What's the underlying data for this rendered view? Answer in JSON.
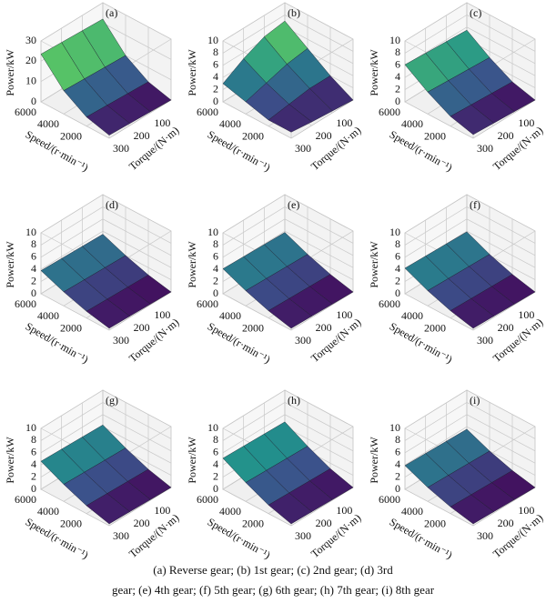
{
  "chart_data": [
    {
      "type": "surface",
      "title": "(a)",
      "x_label": "Speed/(r·min⁻¹)",
      "y_label": "Torque/(N·m)",
      "z_label": "Power/kW",
      "x": [
        0,
        2000,
        4000,
        6000
      ],
      "y": [
        0,
        100,
        200,
        300
      ],
      "z": [
        [
          0,
          0.5,
          1,
          1.5
        ],
        [
          3,
          3.5,
          4,
          4.5
        ],
        [
          10,
          10.5,
          11,
          11.5
        ],
        [
          22,
          22.5,
          23,
          23.5
        ]
      ],
      "xlim": [
        0,
        6000
      ],
      "xticks": [
        2000,
        4000,
        6000
      ],
      "ylim": [
        0,
        300
      ],
      "yticks": [
        100,
        200,
        300
      ],
      "zlim": [
        0,
        30
      ],
      "zticks": [
        0,
        10,
        20,
        30
      ]
    },
    {
      "type": "surface",
      "title": "(b)",
      "x_label": "Speed/(r·min⁻¹)",
      "y_label": "Torque/(N·m)",
      "z_label": "Power/kW",
      "x": [
        0,
        2000,
        4000,
        6000
      ],
      "y": [
        0,
        100,
        200,
        300
      ],
      "z": [
        [
          0,
          0.3,
          0.6,
          1
        ],
        [
          2,
          2,
          1.5,
          1
        ],
        [
          4.5,
          4,
          3,
          2
        ],
        [
          7,
          6.5,
          5,
          3
        ]
      ],
      "xlim": [
        0,
        6000
      ],
      "xticks": [
        2000,
        4000,
        6000
      ],
      "ylim": [
        0,
        300
      ],
      "yticks": [
        100,
        200,
        300
      ],
      "zlim": [
        0,
        10
      ],
      "zticks": [
        0,
        2,
        4,
        6,
        8,
        10
      ]
    },
    {
      "type": "surface",
      "title": "(c)",
      "x_label": "Speed/(r·min⁻¹)",
      "y_label": "Torque/(N·m)",
      "z_label": "Power/kW",
      "x": [
        0,
        2000,
        4000,
        6000
      ],
      "y": [
        0,
        100,
        200,
        300
      ],
      "z": [
        [
          0,
          0.2,
          0.4,
          0.6
        ],
        [
          1,
          1.2,
          1.4,
          1.6
        ],
        [
          3,
          3.2,
          3.4,
          3.6
        ],
        [
          5.5,
          5.7,
          5.9,
          6.1
        ]
      ],
      "xlim": [
        0,
        6000
      ],
      "xticks": [
        2000,
        4000,
        6000
      ],
      "ylim": [
        0,
        300
      ],
      "yticks": [
        100,
        200,
        300
      ],
      "zlim": [
        0,
        10
      ],
      "zticks": [
        0,
        2,
        4,
        6,
        8,
        10
      ]
    },
    {
      "type": "surface",
      "title": "(d)",
      "x_label": "Speed/(r·min⁻¹)",
      "y_label": "Torque/(N·m)",
      "z_label": "Power/kW",
      "x": [
        0,
        2000,
        4000,
        6000
      ],
      "y": [
        0,
        100,
        200,
        300
      ],
      "z": [
        [
          0,
          0.1,
          0.2,
          0.3
        ],
        [
          0.8,
          0.9,
          1,
          1.1
        ],
        [
          2,
          2.1,
          2.2,
          2.3
        ],
        [
          3.5,
          3.6,
          3.7,
          3.8
        ]
      ],
      "xlim": [
        0,
        6000
      ],
      "xticks": [
        2000,
        4000,
        6000
      ],
      "ylim": [
        0,
        300
      ],
      "yticks": [
        100,
        200,
        300
      ],
      "zlim": [
        0,
        10
      ],
      "zticks": [
        0,
        2,
        4,
        6,
        8,
        10
      ]
    },
    {
      "type": "surface",
      "title": "(e)",
      "x_label": "Speed/(r·min⁻¹)",
      "y_label": "Torque/(N·m)",
      "z_label": "Power/kW",
      "x": [
        0,
        2000,
        4000,
        6000
      ],
      "y": [
        0,
        100,
        200,
        300
      ],
      "z": [
        [
          0,
          0.1,
          0.2,
          0.3
        ],
        [
          0.9,
          1,
          1.1,
          1.2
        ],
        [
          2.2,
          2.3,
          2.4,
          2.5
        ],
        [
          3.8,
          3.9,
          4,
          4.1
        ]
      ],
      "xlim": [
        0,
        6000
      ],
      "xticks": [
        2000,
        4000,
        6000
      ],
      "ylim": [
        0,
        300
      ],
      "yticks": [
        100,
        200,
        300
      ],
      "zlim": [
        0,
        10
      ],
      "zticks": [
        0,
        2,
        4,
        6,
        8,
        10
      ]
    },
    {
      "type": "surface",
      "title": "(f)",
      "x_label": "Speed/(r·min⁻¹)",
      "y_label": "Torque/(N·m)",
      "z_label": "Power/kW",
      "x": [
        0,
        2000,
        4000,
        6000
      ],
      "y": [
        0,
        100,
        200,
        300
      ],
      "z": [
        [
          0,
          0.1,
          0.2,
          0.3
        ],
        [
          0.9,
          1,
          1.1,
          1.2
        ],
        [
          2.2,
          2.3,
          2.4,
          2.5
        ],
        [
          3.9,
          4,
          4.1,
          4.2
        ]
      ],
      "xlim": [
        0,
        6000
      ],
      "xticks": [
        2000,
        4000,
        6000
      ],
      "ylim": [
        0,
        300
      ],
      "yticks": [
        100,
        200,
        300
      ],
      "zlim": [
        0,
        10
      ],
      "zticks": [
        0,
        2,
        4,
        6,
        8,
        10
      ]
    },
    {
      "type": "surface",
      "title": "(g)",
      "x_label": "Speed/(r·min⁻¹)",
      "y_label": "Torque/(N·m)",
      "z_label": "Power/kW",
      "x": [
        0,
        2000,
        4000,
        6000
      ],
      "y": [
        0,
        100,
        200,
        300
      ],
      "z": [
        [
          0,
          0.1,
          0.2,
          0.3
        ],
        [
          1,
          1.1,
          1.2,
          1.3
        ],
        [
          2.5,
          2.6,
          2.7,
          2.8
        ],
        [
          4.3,
          4.4,
          4.5,
          4.6
        ]
      ],
      "xlim": [
        0,
        6000
      ],
      "xticks": [
        2000,
        4000,
        6000
      ],
      "ylim": [
        0,
        300
      ],
      "yticks": [
        100,
        200,
        300
      ],
      "zlim": [
        0,
        10
      ],
      "zticks": [
        0,
        2,
        4,
        6,
        8,
        10
      ]
    },
    {
      "type": "surface",
      "title": "(h)",
      "x_label": "Speed/(r·min⁻¹)",
      "y_label": "Torque/(N·m)",
      "z_label": "Power/kW",
      "x": [
        0,
        2000,
        4000,
        6000
      ],
      "y": [
        0,
        100,
        200,
        300
      ],
      "z": [
        [
          0,
          0.1,
          0.2,
          0.3
        ],
        [
          1.1,
          1.2,
          1.3,
          1.4
        ],
        [
          2.8,
          2.9,
          3,
          3.1
        ],
        [
          4.8,
          4.9,
          5,
          5.1
        ]
      ],
      "xlim": [
        0,
        6000
      ],
      "xticks": [
        2000,
        4000,
        6000
      ],
      "ylim": [
        0,
        300
      ],
      "yticks": [
        100,
        200,
        300
      ],
      "zlim": [
        0,
        10
      ],
      "zticks": [
        0,
        2,
        4,
        6,
        8,
        10
      ]
    },
    {
      "type": "surface",
      "title": "(i)",
      "x_label": "Speed/(r·min⁻¹)",
      "y_label": "Torque/(N·m)",
      "z_label": "Power/kW",
      "x": [
        0,
        2000,
        4000,
        6000
      ],
      "y": [
        0,
        100,
        200,
        300
      ],
      "z": [
        [
          0,
          0.1,
          0.2,
          0.3
        ],
        [
          0.8,
          0.9,
          1,
          1.1
        ],
        [
          2,
          2.1,
          2.2,
          2.3
        ],
        [
          3.6,
          3.7,
          3.8,
          3.9
        ]
      ],
      "xlim": [
        0,
        6000
      ],
      "xticks": [
        2000,
        4000,
        6000
      ],
      "ylim": [
        0,
        300
      ],
      "yticks": [
        100,
        200,
        300
      ],
      "zlim": [
        0,
        10
      ],
      "zticks": [
        0,
        2,
        4,
        6,
        8,
        10
      ]
    }
  ],
  "caption": [
    "(a) Reverse gear; (b) 1st gear; (c) 2nd gear; (d) 3rd",
    "gear; (e) 4th gear; (f) 5th gear; (g) 6th gear; (h) 7th gear; (i) 8th gear"
  ]
}
